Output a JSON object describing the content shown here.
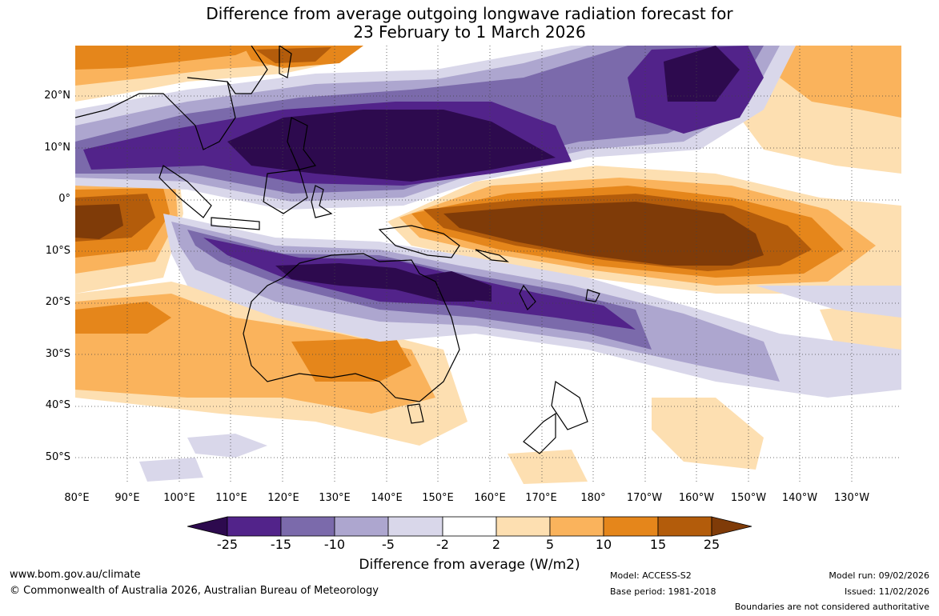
{
  "title": {
    "line1": "Difference from average outgoing longwave radiation forecast for",
    "line2": "23 February to 1 March 2026"
  },
  "map": {
    "lat_labels": [
      "20°N",
      "10°N",
      "0°",
      "10°S",
      "20°S",
      "30°S",
      "40°S",
      "50°S"
    ],
    "lon_labels": [
      "80°E",
      "90°E",
      "100°E",
      "110°E",
      "120°E",
      "130°E",
      "140°E",
      "150°E",
      "160°E",
      "170°E",
      "180°",
      "170°W",
      "160°W",
      "150°W",
      "140°W",
      "130°W"
    ],
    "colors": {
      "lt_-25": "#2d0a4e",
      "-25_-15": "#52238a",
      "-15_-10": "#7b6aab",
      "-10_-5": "#ada6cf",
      "-5_-2": "#d9d7ea",
      "-2_2": "#ffffff",
      "2_5": "#fddfb1",
      "5_10": "#fab35c",
      "10_15": "#e5861b",
      "15_25": "#b35c0b",
      "gt_25": "#7f3b08"
    }
  },
  "colorbar": {
    "ticks": [
      "-25",
      "-15",
      "-10",
      "-5",
      "-2",
      "2",
      "5",
      "10",
      "15",
      "25"
    ],
    "label": "Difference from average (W/m2)"
  },
  "footer": {
    "website": "www.bom.gov.au/climate",
    "copyright": "© Commonwealth of Australia 2026, Australian Bureau of Meteorology",
    "model": "Model: ACCESS-S2",
    "base_period": "Base period: 1981-2018",
    "model_run": "Model run: 09/02/2026",
    "issued": "Issued: 11/02/2026",
    "disclaimer": "Boundaries are not considered authoritative"
  }
}
